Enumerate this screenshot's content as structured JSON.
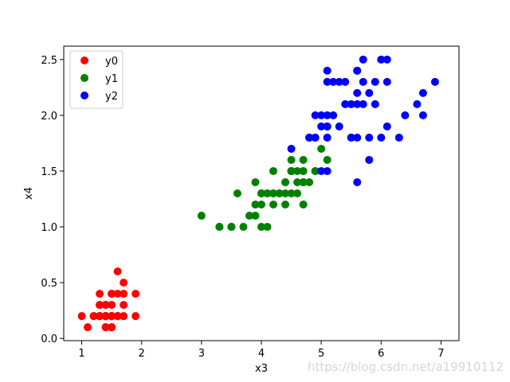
{
  "chart_data": {
    "type": "scatter",
    "title": "",
    "xlabel": "x3",
    "ylabel": "x4",
    "xlim": [
      0.7,
      7.3
    ],
    "ylim": [
      -0.02,
      2.62
    ],
    "xticks": [
      1,
      2,
      3,
      4,
      5,
      6,
      7
    ],
    "xtick_labels": [
      "1",
      "2",
      "3",
      "4",
      "5",
      "6",
      "7"
    ],
    "yticks": [
      0.0,
      0.5,
      1.0,
      1.5,
      2.0,
      2.5
    ],
    "ytick_labels": [
      "0.0",
      "0.5",
      "1.0",
      "1.5",
      "2.0",
      "2.5"
    ],
    "grid": false,
    "legend_position": "top-left",
    "series": [
      {
        "name": "y0",
        "color": "#ff0000",
        "points": [
          [
            1.4,
            0.2
          ],
          [
            1.4,
            0.2
          ],
          [
            1.3,
            0.2
          ],
          [
            1.5,
            0.2
          ],
          [
            1.4,
            0.2
          ],
          [
            1.7,
            0.4
          ],
          [
            1.4,
            0.3
          ],
          [
            1.5,
            0.2
          ],
          [
            1.4,
            0.2
          ],
          [
            1.5,
            0.1
          ],
          [
            1.5,
            0.2
          ],
          [
            1.6,
            0.2
          ],
          [
            1.4,
            0.1
          ],
          [
            1.1,
            0.1
          ],
          [
            1.2,
            0.2
          ],
          [
            1.5,
            0.4
          ],
          [
            1.3,
            0.4
          ],
          [
            1.4,
            0.3
          ],
          [
            1.7,
            0.3
          ],
          [
            1.5,
            0.3
          ],
          [
            1.7,
            0.2
          ],
          [
            1.5,
            0.4
          ],
          [
            1.0,
            0.2
          ],
          [
            1.7,
            0.5
          ],
          [
            1.9,
            0.2
          ],
          [
            1.6,
            0.2
          ],
          [
            1.6,
            0.4
          ],
          [
            1.5,
            0.2
          ],
          [
            1.4,
            0.2
          ],
          [
            1.6,
            0.2
          ],
          [
            1.6,
            0.2
          ],
          [
            1.5,
            0.4
          ],
          [
            1.5,
            0.1
          ],
          [
            1.4,
            0.2
          ],
          [
            1.5,
            0.2
          ],
          [
            1.2,
            0.2
          ],
          [
            1.3,
            0.2
          ],
          [
            1.4,
            0.1
          ],
          [
            1.3,
            0.2
          ],
          [
            1.5,
            0.2
          ],
          [
            1.3,
            0.3
          ],
          [
            1.3,
            0.3
          ],
          [
            1.3,
            0.2
          ],
          [
            1.6,
            0.6
          ],
          [
            1.9,
            0.4
          ],
          [
            1.4,
            0.3
          ],
          [
            1.6,
            0.2
          ],
          [
            1.4,
            0.2
          ],
          [
            1.5,
            0.2
          ],
          [
            1.4,
            0.2
          ]
        ]
      },
      {
        "name": "y1",
        "color": "#008000",
        "points": [
          [
            4.7,
            1.4
          ],
          [
            4.5,
            1.5
          ],
          [
            4.9,
            1.5
          ],
          [
            4.0,
            1.3
          ],
          [
            4.6,
            1.5
          ],
          [
            4.5,
            1.3
          ],
          [
            4.7,
            1.6
          ],
          [
            3.3,
            1.0
          ],
          [
            4.6,
            1.3
          ],
          [
            3.9,
            1.4
          ],
          [
            3.5,
            1.0
          ],
          [
            4.2,
            1.5
          ],
          [
            4.0,
            1.0
          ],
          [
            4.7,
            1.4
          ],
          [
            3.6,
            1.3
          ],
          [
            4.4,
            1.4
          ],
          [
            4.5,
            1.5
          ],
          [
            4.1,
            1.0
          ],
          [
            4.5,
            1.5
          ],
          [
            3.9,
            1.1
          ],
          [
            4.8,
            1.8
          ],
          [
            4.0,
            1.3
          ],
          [
            4.9,
            1.5
          ],
          [
            4.7,
            1.2
          ],
          [
            4.3,
            1.3
          ],
          [
            4.4,
            1.4
          ],
          [
            4.8,
            1.4
          ],
          [
            5.0,
            1.7
          ],
          [
            4.5,
            1.5
          ],
          [
            3.5,
            1.0
          ],
          [
            3.8,
            1.1
          ],
          [
            3.7,
            1.0
          ],
          [
            3.9,
            1.2
          ],
          [
            5.1,
            1.6
          ],
          [
            4.5,
            1.5
          ],
          [
            4.5,
            1.6
          ],
          [
            4.7,
            1.5
          ],
          [
            4.4,
            1.3
          ],
          [
            4.1,
            1.3
          ],
          [
            4.0,
            1.3
          ],
          [
            4.4,
            1.2
          ],
          [
            4.6,
            1.4
          ],
          [
            4.0,
            1.2
          ],
          [
            3.3,
            1.0
          ],
          [
            4.2,
            1.3
          ],
          [
            4.2,
            1.2
          ],
          [
            4.2,
            1.3
          ],
          [
            4.3,
            1.3
          ],
          [
            3.0,
            1.1
          ],
          [
            4.1,
            1.3
          ]
        ]
      },
      {
        "name": "y2",
        "color": "#0000ff",
        "points": [
          [
            6.0,
            2.5
          ],
          [
            5.1,
            1.9
          ],
          [
            5.9,
            2.1
          ],
          [
            5.6,
            1.8
          ],
          [
            5.8,
            2.2
          ],
          [
            6.6,
            2.1
          ],
          [
            4.5,
            1.7
          ],
          [
            6.3,
            1.8
          ],
          [
            5.8,
            1.8
          ],
          [
            6.1,
            2.5
          ],
          [
            5.1,
            2.0
          ],
          [
            5.3,
            1.9
          ],
          [
            5.5,
            2.1
          ],
          [
            5.0,
            2.0
          ],
          [
            5.1,
            2.4
          ],
          [
            5.3,
            2.3
          ],
          [
            5.5,
            1.8
          ],
          [
            6.7,
            2.2
          ],
          [
            6.9,
            2.3
          ],
          [
            5.0,
            1.5
          ],
          [
            5.7,
            2.3
          ],
          [
            4.9,
            2.0
          ],
          [
            6.7,
            2.0
          ],
          [
            4.9,
            1.8
          ],
          [
            5.7,
            2.1
          ],
          [
            6.0,
            1.8
          ],
          [
            4.8,
            1.8
          ],
          [
            4.9,
            1.8
          ],
          [
            5.6,
            2.1
          ],
          [
            5.8,
            1.6
          ],
          [
            6.1,
            1.9
          ],
          [
            6.4,
            2.0
          ],
          [
            5.6,
            2.2
          ],
          [
            5.1,
            1.5
          ],
          [
            5.6,
            1.4
          ],
          [
            6.1,
            2.3
          ],
          [
            5.6,
            2.4
          ],
          [
            5.5,
            1.8
          ],
          [
            4.8,
            1.8
          ],
          [
            5.4,
            2.1
          ],
          [
            5.6,
            2.4
          ],
          [
            5.1,
            2.3
          ],
          [
            5.1,
            1.9
          ],
          [
            5.9,
            2.3
          ],
          [
            5.7,
            2.5
          ],
          [
            5.2,
            2.3
          ],
          [
            5.0,
            1.9
          ],
          [
            5.2,
            2.0
          ],
          [
            5.4,
            2.3
          ],
          [
            5.1,
            1.8
          ]
        ]
      }
    ]
  },
  "watermark": {
    "text": "https://blog.csdn.net/a19910112"
  }
}
